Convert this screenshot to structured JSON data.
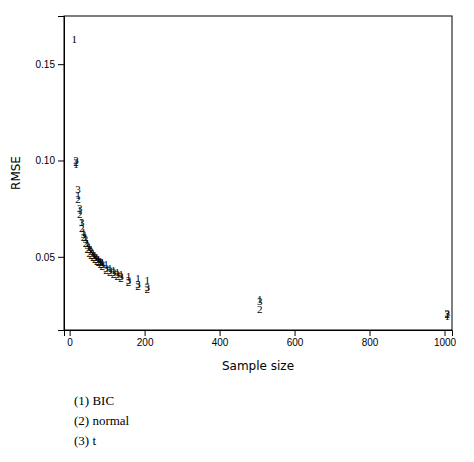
{
  "chart_data": {
    "type": "scatter",
    "xlabel": "Sample size",
    "ylabel": "RMSE",
    "xlim": [
      -15,
      1020
    ],
    "ylim": [
      0.012,
      0.175
    ],
    "xticks": [
      0,
      200,
      400,
      600,
      800,
      1000
    ],
    "yticks": [
      0.05,
      {
        "value": 0.1,
        "label": "0.10"
      },
      0.15
    ],
    "legend": "bottom",
    "series": [
      {
        "name": "(1) BIC",
        "marker": "1",
        "x": [
          5,
          10,
          15,
          20,
          25,
          30,
          35,
          40,
          45,
          50,
          55,
          60,
          65,
          70,
          75,
          80,
          90,
          100,
          110,
          120,
          130,
          150,
          175,
          200,
          500,
          1000
        ],
        "values": [
          0.163,
          0.098,
          0.082,
          0.074,
          0.068,
          0.063,
          0.06,
          0.057,
          0.055,
          0.054,
          0.052,
          0.051,
          0.05,
          0.049,
          0.048,
          0.047,
          0.046,
          0.044,
          0.043,
          0.042,
          0.041,
          0.04,
          0.039,
          0.038,
          0.028,
          0.019
        ]
      },
      {
        "name": "(2) normal",
        "marker": "2",
        "x": [
          10,
          15,
          20,
          25,
          30,
          35,
          40,
          45,
          50,
          55,
          60,
          65,
          70,
          75,
          80,
          90,
          100,
          110,
          120,
          130,
          150,
          175,
          200,
          500,
          1000
        ],
        "values": [
          0.099,
          0.08,
          0.072,
          0.065,
          0.06,
          0.057,
          0.054,
          0.052,
          0.051,
          0.05,
          0.049,
          0.048,
          0.047,
          0.046,
          0.045,
          0.043,
          0.042,
          0.041,
          0.04,
          0.039,
          0.037,
          0.035,
          0.033,
          0.023,
          0.02
        ]
      },
      {
        "name": "(3) t",
        "marker": "3",
        "x": [
          10,
          15,
          20,
          25,
          30,
          35,
          40,
          45,
          50,
          55,
          60,
          65,
          70,
          75,
          80,
          90,
          100,
          110,
          120,
          130,
          150,
          175,
          200,
          500,
          1000
        ],
        "values": [
          0.1,
          0.085,
          0.075,
          0.068,
          0.062,
          0.059,
          0.056,
          0.054,
          0.053,
          0.051,
          0.05,
          0.049,
          0.048,
          0.047,
          0.046,
          0.044,
          0.043,
          0.042,
          0.041,
          0.04,
          0.038,
          0.036,
          0.034,
          0.027,
          0.021
        ]
      }
    ]
  }
}
